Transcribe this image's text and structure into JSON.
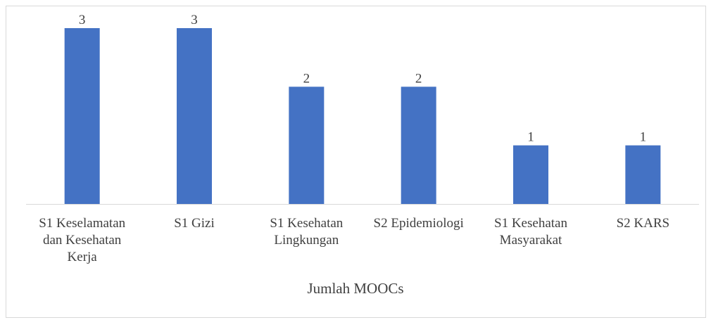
{
  "chart_data": {
    "type": "bar",
    "categories": [
      "S1 Keselamatan dan Kesehatan Kerja",
      "S1 Gizi",
      "S1 Kesehatan Lingkungan",
      "S2 Epidemiologi",
      "S1 Kesehatan Masyarakat",
      "S2 KARS"
    ],
    "values": [
      3,
      3,
      2,
      2,
      1,
      1
    ],
    "color": "#4472c4",
    "x_label": "Jumlah MOOCs"
  }
}
